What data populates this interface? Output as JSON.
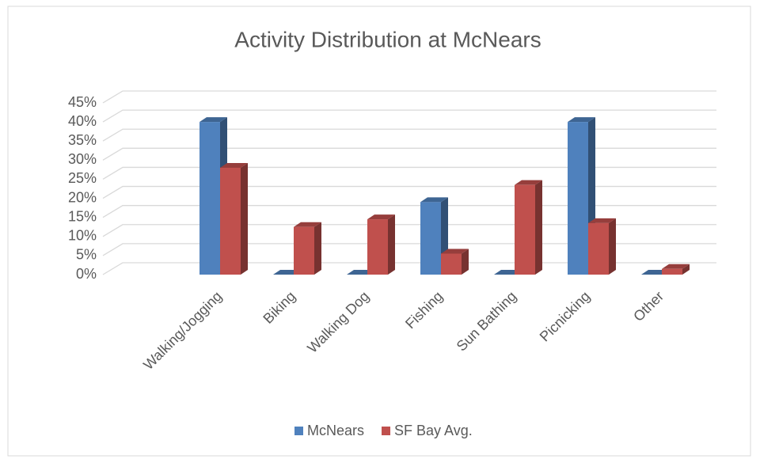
{
  "chart_data": {
    "type": "bar3d",
    "title": "Activity Distribution at McNears",
    "categories": [
      "Walking/Jogging",
      "Biking",
      "Walking Dog",
      "Fishing",
      "Sun Bathing",
      "Picnicking",
      "Other"
    ],
    "series": [
      {
        "name": "McNears",
        "color": "#4f81bd",
        "values": [
          40,
          0,
          0,
          19,
          0,
          40,
          0
        ]
      },
      {
        "name": "SF Bay Avg.",
        "color": "#c0504d",
        "values": [
          28,
          12.5,
          14.5,
          5.5,
          23.5,
          13.5,
          1.5
        ]
      }
    ],
    "ylim": [
      0,
      45
    ],
    "yticks": [
      {
        "value": 0,
        "label": "0%"
      },
      {
        "value": 5,
        "label": "5%"
      },
      {
        "value": 10,
        "label": "10%"
      },
      {
        "value": 15,
        "label": "15%"
      },
      {
        "value": 20,
        "label": "20%"
      },
      {
        "value": 25,
        "label": "25%"
      },
      {
        "value": 30,
        "label": "30%"
      },
      {
        "value": 35,
        "label": "35%"
      },
      {
        "value": 40,
        "label": "40%"
      },
      {
        "value": 45,
        "label": "45%"
      }
    ],
    "grid": true,
    "legend": "bottom"
  }
}
